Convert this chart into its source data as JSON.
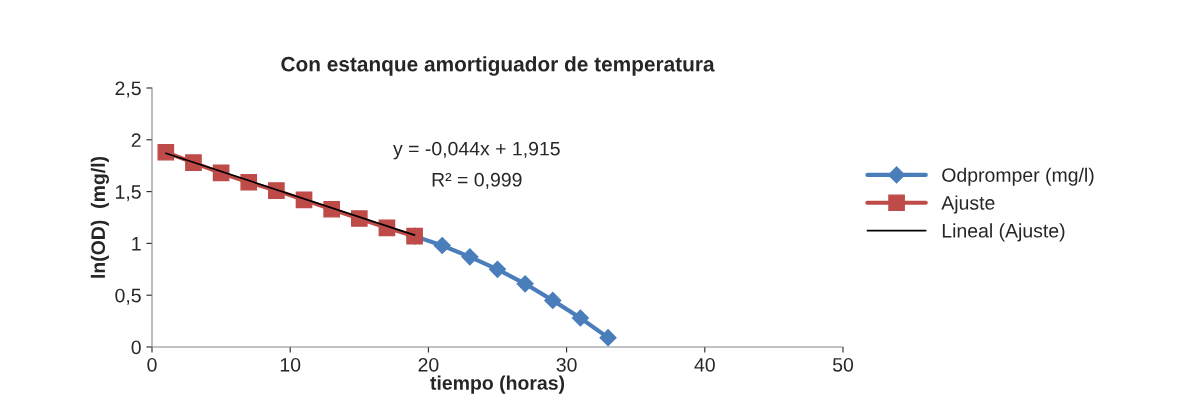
{
  "chart_data": {
    "type": "line",
    "title": "Con estanque amortiguador de temperatura",
    "xlabel": "tiempo (horas)",
    "ylabel": "ln(OD)  (mg/l)",
    "xlim": [
      0,
      50
    ],
    "xticks": [
      0,
      10,
      20,
      30,
      40,
      50
    ],
    "ylim": [
      0,
      2.5
    ],
    "yticks": [
      0,
      {
        "value": 0.5,
        "label": "0,5"
      },
      1,
      {
        "value": 1.5,
        "label": "1,5"
      },
      2,
      {
        "value": 2.5,
        "label": "2,5"
      }
    ],
    "grid": false,
    "legend": "right",
    "series": [
      {
        "name": "Odpromper (mg/l)",
        "color": "#4a7ebb",
        "marker": "diamond",
        "x": [
          19,
          21,
          23,
          25,
          27,
          29,
          31,
          33
        ],
        "values": [
          1.07,
          0.98,
          0.87,
          0.75,
          0.61,
          0.45,
          0.28,
          0.09
        ]
      },
      {
        "name": "Ajuste",
        "color": "#be4b48",
        "marker": "square",
        "x": [
          1,
          3,
          5,
          7,
          9,
          11,
          13,
          15,
          17,
          19
        ],
        "values": [
          1.88,
          1.78,
          1.68,
          1.59,
          1.51,
          1.42,
          1.33,
          1.24,
          1.15,
          1.07
        ]
      },
      {
        "name": "Lineal (Ajuste)",
        "color": "#000000",
        "marker": "none",
        "x": [
          1,
          19
        ],
        "values": [
          1.87,
          1.08
        ]
      }
    ],
    "annotations": [
      "y = -0,044x + 1,915",
      "R² = 0,999"
    ]
  }
}
